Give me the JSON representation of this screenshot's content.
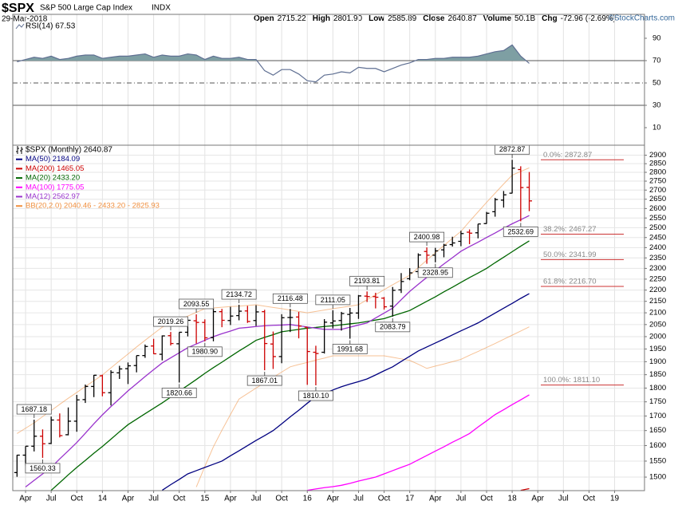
{
  "header": {
    "symbol": "$SPX",
    "name": "S&P 500 Large Cap Index",
    "exchange": "INDX",
    "date": "29-Mar-2018",
    "quote": [
      {
        "label": "Open",
        "value": "2715.22"
      },
      {
        "label": "High",
        "value": "2801.90"
      },
      {
        "label": "Low",
        "value": "2585.89"
      },
      {
        "label": "Close",
        "value": "2640.87"
      },
      {
        "label": "Volume",
        "value": "50.1B"
      },
      {
        "label": "Chg",
        "value": "-72.96 (-2.69%)"
      }
    ],
    "credit": "©StockCharts.com"
  },
  "chart_data": [
    {
      "type": "line",
      "legend": "RSI(14) 67.53",
      "color": "#5f6f92",
      "fill_color": "#7e9fa3",
      "values": [
        69,
        71,
        73,
        72,
        74,
        71,
        72,
        74,
        75,
        75,
        72,
        73,
        74,
        74,
        75,
        76,
        73,
        75,
        74,
        74,
        76,
        75,
        71,
        74,
        72,
        72,
        73,
        71,
        71,
        61,
        57,
        62,
        62,
        58,
        52,
        51,
        57,
        58,
        60,
        59,
        64,
        63,
        63,
        60,
        63,
        66,
        68,
        71,
        71,
        72,
        72,
        73,
        73,
        73,
        74,
        76,
        78,
        79,
        84,
        74,
        67.53
      ],
      "ylim": [
        -5.7,
        111.4
      ],
      "yticks": [
        90,
        70,
        50,
        30,
        10
      ],
      "reference_lines": [
        {
          "value": 70,
          "style": "solid"
        },
        {
          "value": 50,
          "style": "dashdot"
        },
        {
          "value": 30,
          "style": "solid"
        }
      ]
    },
    {
      "type": "ohlc",
      "legend": "$SPX (Monthly) 2640.87",
      "up_color": "#000000",
      "down_color": "#cc0000",
      "categories": [
        null,
        "Apr",
        null,
        null,
        "Jul",
        null,
        null,
        "Oct",
        null,
        null,
        "14",
        null,
        null,
        "Apr",
        null,
        null,
        "Jul",
        null,
        null,
        "Oct",
        null,
        null,
        "15",
        null,
        null,
        "Apr",
        null,
        null,
        "Jul",
        null,
        null,
        "Oct",
        null,
        null,
        "16",
        null,
        null,
        "Apr",
        null,
        null,
        "Jul",
        null,
        null,
        "Oct",
        null,
        null,
        "17",
        null,
        null,
        "Apr",
        null,
        null,
        "Jul",
        null,
        null,
        "Oct",
        null,
        null,
        "18",
        null,
        null,
        "Apr",
        null,
        null,
        "Jul",
        null,
        null,
        "Oct",
        null,
        null,
        "19",
        null,
        null,
        null
      ],
      "open": {
        "values": [
          1514,
          1569,
          1598,
          1631,
          1607,
          1686,
          1636,
          1682,
          1758,
          1806,
          1846,
          1783,
          1857,
          1873,
          1885,
          1924,
          1962,
          1929,
          2004,
          1971,
          2018,
          2066,
          2059,
          1996,
          2105,
          2067,
          2088,
          2108,
          2067,
          2105,
          1970,
          1920,
          2080,
          2082,
          2039,
          1937,
          1937,
          2057,
          2067,
          2093,
          2099,
          2173,
          2171,
          2164,
          2129,
          2201,
          2252,
          2285,
          2381,
          2363,
          2389,
          2415,
          2431,
          2477,
          2474,
          2521,
          2583,
          2645,
          2683,
          2816,
          2715.22
        ]
      },
      "high": {
        "values": [
          1570,
          1598,
          1687.18,
          1654,
          1698,
          1709,
          1730,
          1775,
          1813,
          1849,
          1850,
          1867,
          1884,
          1897,
          1924,
          1968,
          1991,
          2005,
          2019.26,
          2018,
          2075,
          2093.55,
          2072,
          2120,
          2117,
          2126,
          2134.72,
          2130,
          2133,
          2113,
          2021,
          2094,
          2116.48,
          2104,
          2039,
          1963,
          2073,
          2111.05,
          2104,
          2121,
          2178,
          2193.81,
          2188,
          2169,
          2214,
          2278,
          2301,
          2372,
          2400.98,
          2399,
          2419,
          2454,
          2484,
          2491,
          2519,
          2582,
          2657,
          2695,
          2872.87,
          2835,
          2801.9
        ],
        "value_labels": [
          null,
          null,
          "1687.18",
          null,
          null,
          null,
          null,
          null,
          null,
          null,
          null,
          null,
          null,
          null,
          null,
          null,
          null,
          null,
          "2019.26",
          null,
          null,
          "2093.55",
          null,
          null,
          null,
          null,
          "2134.72",
          null,
          null,
          null,
          null,
          null,
          "2116.48",
          null,
          null,
          null,
          null,
          "2111.05",
          null,
          null,
          null,
          "2193.81",
          null,
          null,
          null,
          null,
          null,
          null,
          "2400.98",
          null,
          null,
          null,
          null,
          null,
          null,
          null,
          null,
          null,
          "2872.87",
          null,
          null
        ]
      },
      "low": {
        "values": [
          1501,
          1536,
          1581,
          1560.33,
          1605,
          1627,
          1634,
          1646,
          1746,
          1767,
          1770,
          1737,
          1834,
          1815,
          1859,
          1915,
          1930,
          1905,
          1964,
          1820.66,
          2001,
          1972,
          1980.9,
          1981,
          2039,
          2048,
          2068,
          2057,
          2044,
          1867.01,
          1872,
          1894,
          2019,
          1993,
          1812,
          1810.1,
          1932,
          2034,
          2025,
          1991.68,
          2074,
          2147,
          2119,
          2114,
          2083.79,
          2187,
          2245,
          2271,
          2322,
          2328.95,
          2353,
          2405,
          2407,
          2417,
          2446,
          2520,
          2557,
          2605,
          2682,
          2532.69,
          2585.89
        ],
        "value_labels": [
          null,
          null,
          null,
          "1560.33",
          null,
          null,
          null,
          null,
          null,
          null,
          null,
          null,
          null,
          null,
          null,
          null,
          null,
          null,
          null,
          "1820.66",
          null,
          null,
          "1980.90",
          null,
          null,
          null,
          null,
          null,
          null,
          "1867.01",
          null,
          null,
          null,
          null,
          null,
          "1810.10",
          null,
          null,
          null,
          "1991.68",
          null,
          null,
          null,
          null,
          "2083.79",
          null,
          null,
          null,
          null,
          "2328.95",
          null,
          null,
          null,
          null,
          null,
          null,
          null,
          null,
          null,
          "2532.69",
          null
        ]
      },
      "close": {
        "values": [
          1569,
          1598,
          1631,
          1606,
          1686,
          1633,
          1682,
          1757,
          1806,
          1848,
          1783,
          1859,
          1872,
          1884,
          1924,
          1960,
          1931,
          2003,
          1972,
          2018,
          2068,
          2059,
          1995,
          2105,
          2068,
          2086,
          2107,
          2063,
          2104,
          1972,
          1920,
          2079,
          2080,
          2044,
          1940,
          1932,
          2060,
          2065,
          2097,
          2099,
          2174,
          2171,
          2168,
          2126,
          2199,
          2239,
          2279,
          2364,
          2363,
          2384,
          2412,
          2423,
          2470,
          2472,
          2519,
          2575,
          2648,
          2674,
          2824,
          2714,
          2640.87
        ]
      },
      "lines": [
        {
          "name": "MA(50) 2184.09",
          "color": "#000080",
          "values": [
            null,
            null,
            null,
            null,
            null,
            null,
            null,
            null,
            null,
            null,
            null,
            null,
            null,
            null,
            null,
            null,
            null,
            1460,
            1477,
            1493,
            1510,
            1520,
            1530,
            1540,
            1550,
            1567,
            1583,
            1600,
            1617,
            1633,
            1650,
            1673,
            1697,
            1720,
            1745,
            1769,
            1781,
            1793,
            1805,
            1815,
            1824,
            1834,
            1849,
            1865,
            1880,
            1901,
            1921,
            1942,
            1958,
            1974,
            1990,
            2007,
            2024,
            2040,
            2057,
            2078,
            2099,
            2120,
            2141,
            2163,
            2184.09
          ]
        },
        {
          "name": "MA(200) 1465.05",
          "color": "#cc0000",
          "values": [
            null,
            null,
            null,
            null,
            null,
            null,
            null,
            null,
            null,
            null,
            null,
            null,
            null,
            null,
            null,
            null,
            null,
            null,
            null,
            null,
            null,
            null,
            null,
            null,
            null,
            null,
            null,
            null,
            null,
            null,
            null,
            null,
            null,
            null,
            null,
            null,
            null,
            null,
            null,
            null,
            null,
            null,
            null,
            null,
            null,
            null,
            null,
            null,
            null,
            null,
            null,
            null,
            null,
            null,
            null,
            null,
            null,
            null,
            null,
            1460,
            1465.05
          ]
        },
        {
          "name": "MA(20) 2433.20",
          "color": "#006600",
          "values": [
            null,
            null,
            null,
            null,
            1460,
            1483,
            1507,
            1530,
            1552,
            1575,
            1597,
            1621,
            1646,
            1670,
            1689,
            1708,
            1727,
            1746,
            1767,
            1789,
            1810,
            1832,
            1855,
            1877,
            1898,
            1920,
            1942,
            1963,
            1985,
            1997,
            2008,
            2020,
            2025,
            2030,
            2035,
            2038,
            2042,
            2045,
            2049,
            2053,
            2057,
            2063,
            2069,
            2075,
            2087,
            2098,
            2110,
            2130,
            2150,
            2170,
            2192,
            2213,
            2235,
            2257,
            2278,
            2300,
            2327,
            2353,
            2380,
            2407,
            2433.2
          ]
        },
        {
          "name": "MA(100) 1775.05",
          "color": "#ff00ff",
          "values": [
            null,
            null,
            null,
            null,
            null,
            null,
            null,
            null,
            null,
            null,
            null,
            null,
            null,
            null,
            null,
            null,
            null,
            null,
            null,
            null,
            null,
            null,
            null,
            null,
            null,
            null,
            null,
            null,
            null,
            null,
            null,
            null,
            null,
            null,
            1460,
            1464,
            1468,
            1471,
            1475,
            1481,
            1488,
            1494,
            1500,
            1510,
            1520,
            1530,
            1540,
            1554,
            1568,
            1582,
            1596,
            1611,
            1625,
            1640,
            1662,
            1683,
            1705,
            1722,
            1740,
            1757,
            1775.05
          ]
        },
        {
          "name": "MA(12) 2562.97",
          "color": "#9933cc",
          "values": [
            null,
            1470,
            1490,
            1510,
            1530,
            1557,
            1583,
            1610,
            1641,
            1673,
            1704,
            1733,
            1761,
            1790,
            1816,
            1843,
            1869,
            1895,
            1915,
            1935,
            1955,
            1970,
            1985,
            2000,
            2012,
            2023,
            2035,
            2038,
            2042,
            2045,
            2047,
            2048,
            2050,
            2045,
            2040,
            2035,
            2030,
            2030,
            2030,
            2039,
            2048,
            2057,
            2078,
            2099,
            2120,
            2157,
            2194,
            2226,
            2258,
            2290,
            2321,
            2351,
            2382,
            2405,
            2427,
            2450,
            2473,
            2497,
            2520,
            2541,
            2562.97
          ]
        }
      ],
      "bollinger": {
        "name": "BB(20,2.0) 2040.46 - 2433.20 - 2825.93",
        "color": "#f09040",
        "upper": [
          1640,
          1658,
          1676,
          1698,
          1719,
          1741,
          1763,
          1784,
          1806,
          1827,
          1849,
          1876,
          1903,
          1930,
          1958,
          1985,
          2012,
          2039,
          2055,
          2071,
          2086,
          2102,
          2118,
          2121,
          2124,
          2127,
          2129,
          2132,
          2135,
          2129,
          2123,
          2118,
          2112,
          2106,
          2100,
          2106,
          2112,
          2118,
          2123,
          2129,
          2135,
          2157,
          2179,
          2202,
          2224,
          2246,
          2268,
          2304,
          2339,
          2375,
          2410,
          2446,
          2481,
          2532,
          2582,
          2633,
          2683,
          2734,
          2784,
          2805,
          2825.93
        ],
        "lower": [
          null,
          null,
          null,
          null,
          null,
          null,
          null,
          null,
          null,
          null,
          null,
          null,
          null,
          null,
          null,
          null,
          null,
          null,
          null,
          null,
          null,
          1470,
          1533,
          1596,
          1651,
          1705,
          1760,
          1780,
          1800,
          1820,
          1840,
          1860,
          1880,
          1889,
          1897,
          1906,
          1914,
          1923,
          1923,
          1923,
          1923,
          1923,
          1923,
          1923,
          1917,
          1911,
          1905,
          1890,
          1874,
          1883,
          1891,
          1900,
          1909,
          1925,
          1940,
          1956,
          1972,
          1989,
          2006,
          2023,
          2040.46
        ]
      },
      "fibonacci": {
        "color": "#cc3333",
        "levels": [
          {
            "label": "0.0%: 2872.87",
            "value": 2872.87
          },
          {
            "label": "38.2%: 2467.27",
            "value": 2467.27
          },
          {
            "label": "50.0%: 2341.99",
            "value": 2341.99
          },
          {
            "label": "61.8%: 2216.70",
            "value": 2216.7
          },
          {
            "label": "100.0%: 1811.10",
            "value": 1811.1
          }
        ]
      },
      "ylim": [
        1459,
        2960
      ],
      "log_scale": true,
      "grid": true,
      "yticks": [
        1500,
        1550,
        1600,
        1650,
        1700,
        1750,
        1800,
        1850,
        1900,
        1950,
        2000,
        2050,
        2100,
        2150,
        2200,
        2250,
        2300,
        2350,
        2400,
        2450,
        2500,
        2550,
        2600,
        2650,
        2700,
        2750,
        2800,
        2850,
        2900
      ]
    }
  ]
}
